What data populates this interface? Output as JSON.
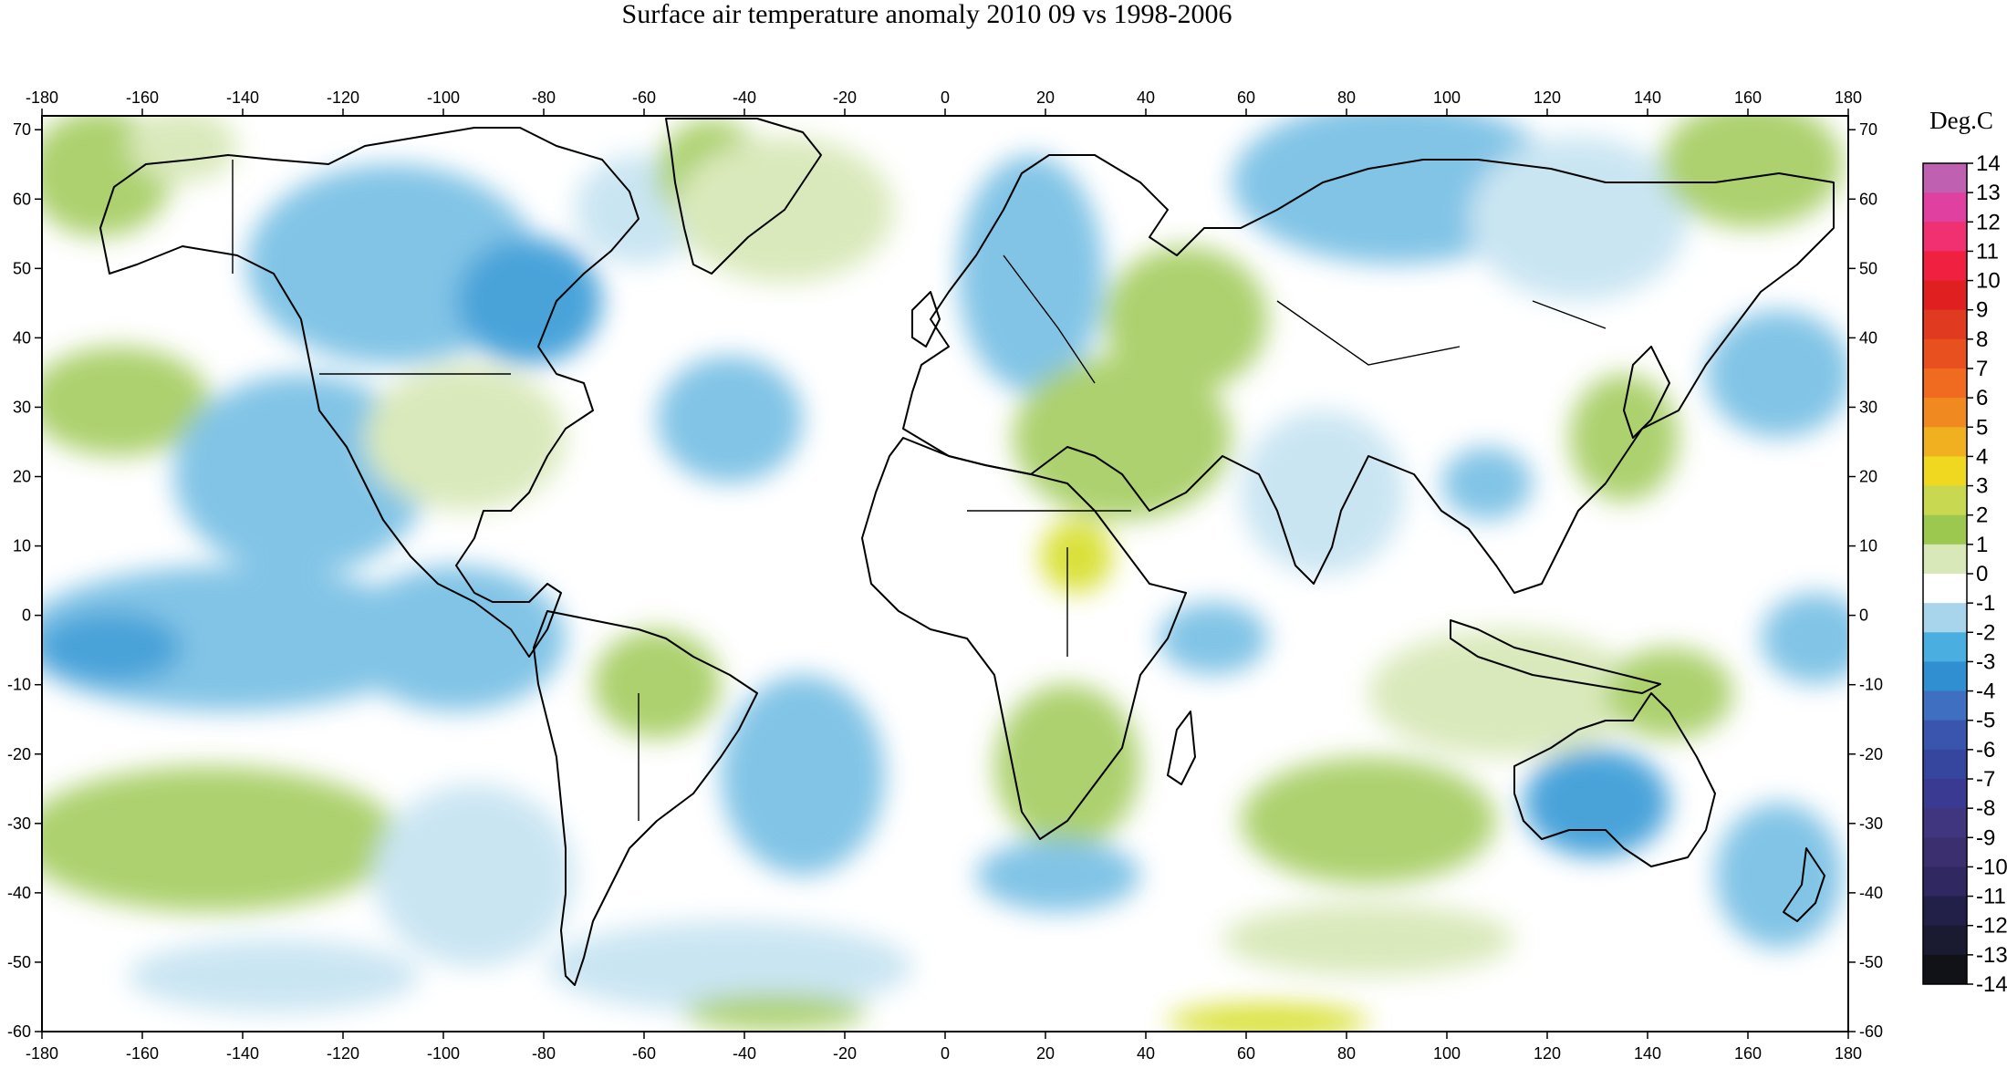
{
  "title": "Surface air temperature anomaly 2010 09 vs 1998-2006",
  "map": {
    "x_ticks": [
      "-180",
      "-160",
      "-140",
      "-120",
      "-100",
      "-80",
      "-60",
      "-40",
      "-20",
      "0",
      "20",
      "40",
      "60",
      "80",
      "100",
      "120",
      "140",
      "160",
      "180"
    ],
    "y_ticks": [
      "70",
      "60",
      "50",
      "40",
      "30",
      "20",
      "10",
      "0",
      "-10",
      "-20",
      "-30",
      "-40",
      "-50",
      "-60"
    ],
    "lon_range": [
      -180,
      180
    ],
    "lat_range": [
      -60,
      72
    ]
  },
  "colorbar": {
    "unit": "Deg.C",
    "labels": [
      "14",
      "13",
      "12",
      "11",
      "10",
      "9",
      "8",
      "7",
      "6",
      "5",
      "4",
      "3",
      "2",
      "1",
      "0",
      "-1",
      "-2",
      "-3",
      "-4",
      "-5",
      "-6",
      "-7",
      "-8",
      "-9",
      "-10",
      "-11",
      "-12",
      "-13",
      "-14"
    ],
    "colors": [
      "#c060b0",
      "#e040a0",
      "#f03070",
      "#f02040",
      "#e02020",
      "#e03a20",
      "#e85020",
      "#f06a20",
      "#f08a20",
      "#f0b020",
      "#f0d820",
      "#c8d850",
      "#9cc850",
      "#d8e8b8",
      "#ffffff",
      "#a8d4ec",
      "#4aaee0",
      "#2f8fd0",
      "#3f6fc0",
      "#3a55ad",
      "#36459d",
      "#3a3a92",
      "#40357f",
      "#3c2f70",
      "#302860",
      "#222048",
      "#1a1a30",
      "#111118"
    ]
  },
  "colors": {
    "warm_light": "#d8e8b8",
    "warm": "#a9cf68",
    "warm_strong": "#d8e030",
    "cool_light": "#c7e4f2",
    "cool": "#7bc1e5",
    "cool_strong": "#3f9fd8",
    "coast": "#000000"
  }
}
